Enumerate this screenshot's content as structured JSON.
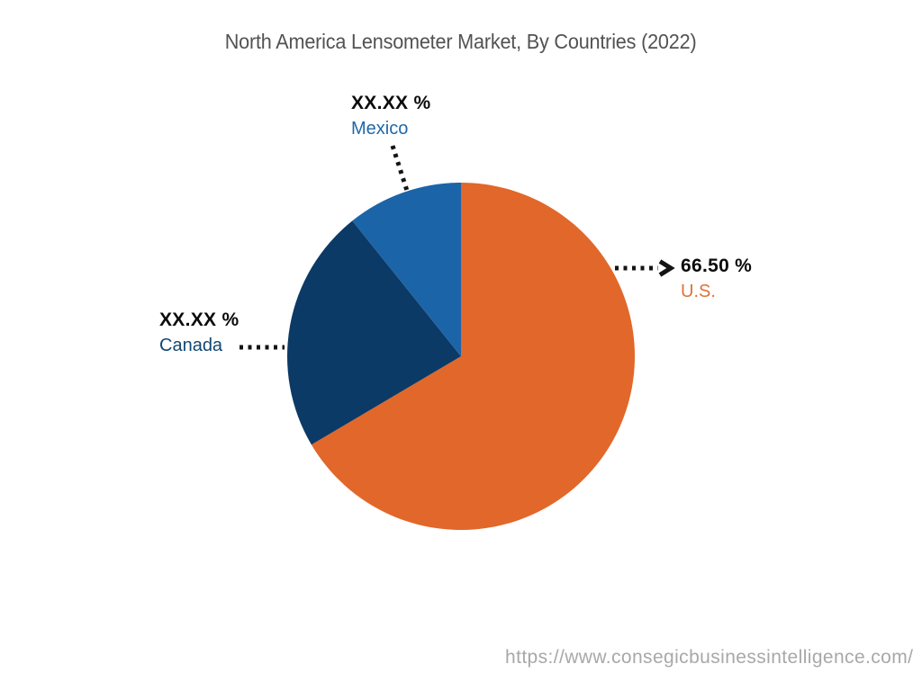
{
  "title": "North America Lensometer Market, By Countries (2022)",
  "chart_data": {
    "type": "pie",
    "title": "North America Lensometer Market, By Countries (2022)",
    "start_angle_deg": 0,
    "direction": "clockwise",
    "legend_position": "callout-labels",
    "slices": [
      {
        "name": "U.S.",
        "value": 66.5,
        "display_value": "66.50 %",
        "color": "#E2672A",
        "label_color": "#E0713A"
      },
      {
        "name": "Canada",
        "value": 22.75,
        "display_value": "XX.XX %",
        "color": "#0C3A66",
        "label_color": "#134672"
      },
      {
        "name": "Mexico",
        "value": 10.75,
        "display_value": "XX.XX %",
        "color": "#1C64A8",
        "label_color": "#2069A8"
      }
    ],
    "leader_line_color": "#141414"
  },
  "watermark": {
    "url_text": "https://www.consegicbusinessintelligence.com/"
  }
}
